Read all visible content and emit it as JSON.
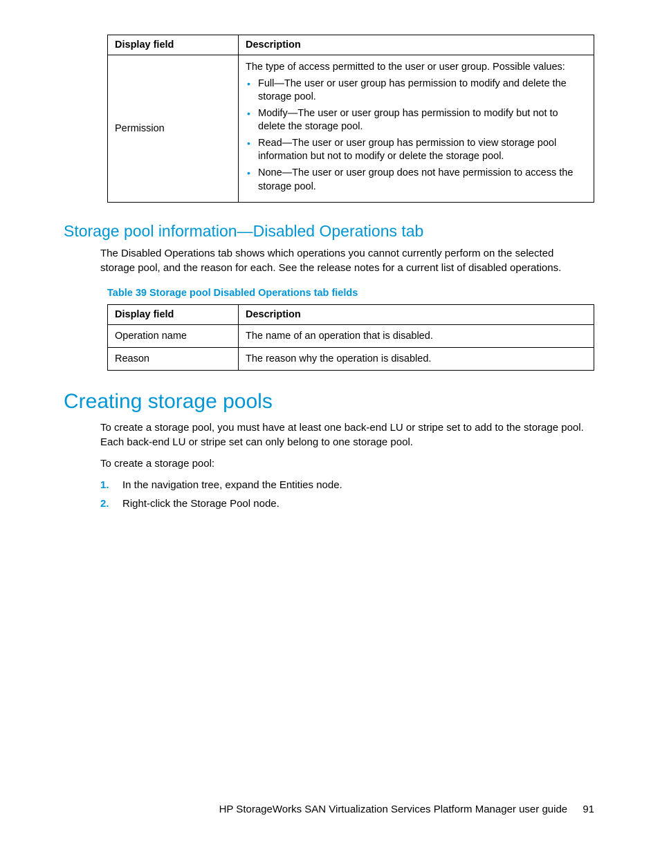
{
  "colors": {
    "accent": "#0096d6",
    "text": "#000000",
    "background": "#ffffff",
    "border": "#000000"
  },
  "table1": {
    "headers": {
      "field": "Display field",
      "desc": "Description"
    },
    "row": {
      "field": "Permission",
      "lead": "The type of access permitted to the user or user group. Possible values:",
      "bullets": [
        "Full—The user or user group has permission to modify and delete the storage pool.",
        "Modify—The user or user group has permission to modify but not to delete the storage pool.",
        "Read—The user or user group has permission to view storage pool information but not to modify or delete the storage pool.",
        "None—The user or user group does not have permission to access the storage pool."
      ]
    }
  },
  "section1": {
    "title": "Storage pool information—Disabled Operations tab",
    "para": "The Disabled Operations tab shows which operations you cannot currently perform on the selected storage pool, and the reason for each. See the release notes for a current list of disabled operations.",
    "caption": "Table 39 Storage pool Disabled Operations tab fields",
    "table": {
      "headers": {
        "field": "Display field",
        "desc": "Description"
      },
      "rows": [
        {
          "field": "Operation name",
          "desc": "The name of an operation that is disabled."
        },
        {
          "field": "Reason",
          "desc": "The reason why the operation is disabled."
        }
      ]
    }
  },
  "section2": {
    "title": "Creating storage pools",
    "para1": "To create a storage pool, you must have at least one back-end LU or stripe set to add to the storage pool. Each back-end LU or stripe set can only belong to one storage pool.",
    "para2": "To create a storage pool:",
    "steps": [
      "In the navigation tree, expand the Entities node.",
      "Right-click the Storage Pool node."
    ]
  },
  "footer": {
    "text": "HP StorageWorks SAN Virtualization Services Platform Manager user guide",
    "page": "91"
  }
}
